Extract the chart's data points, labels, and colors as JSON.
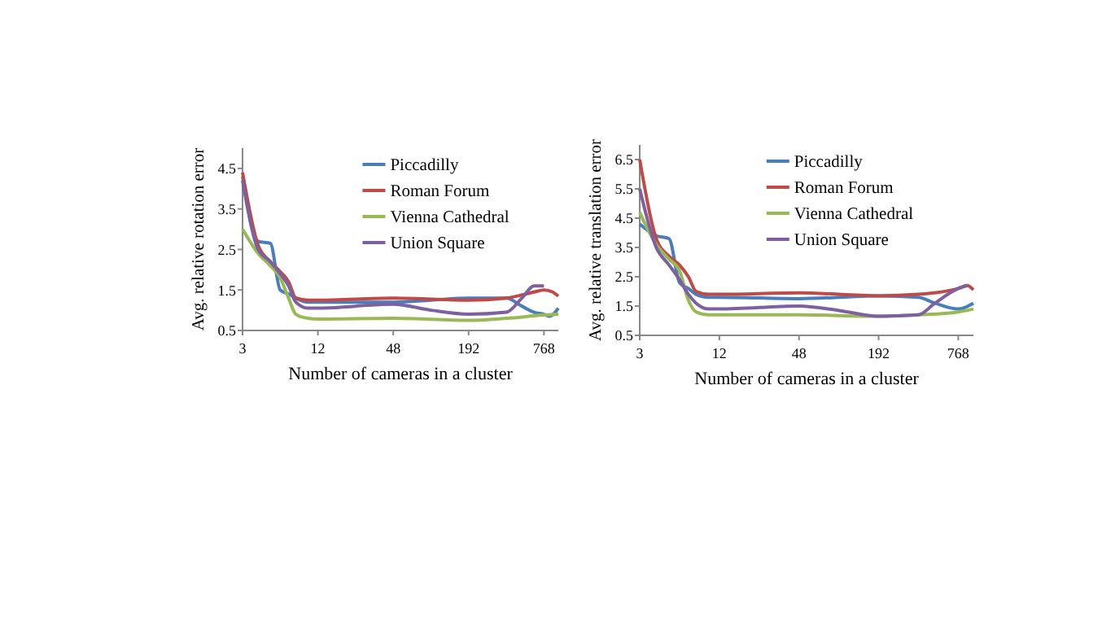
{
  "chart_data": [
    {
      "type": "line",
      "xlabel": "Number of cameras in a cluster",
      "ylabel": "Avg. relative rotation error",
      "log": "x",
      "xlim": [
        3,
        1000
      ],
      "xticks": [
        3,
        12,
        48,
        192,
        768
      ],
      "ylim": [
        0.5,
        5
      ],
      "yticks": [
        0.5,
        1.5,
        2.5,
        3.5,
        4.5
      ],
      "grid": false,
      "legend": "top right",
      "marker": "none",
      "line_style": "solid",
      "series": [
        {
          "name": "Piccadilly",
          "color": "#4a7ebb",
          "x": [
            3,
            4,
            5,
            6,
            7,
            8,
            10,
            12,
            24,
            48,
            96,
            192,
            384,
            512,
            640,
            768,
            850,
            1000
          ],
          "values": [
            4.3,
            2.7,
            2.65,
            1.5,
            1.4,
            1.3,
            1.2,
            1.2,
            1.2,
            1.2,
            1.25,
            1.3,
            1.3,
            1.1,
            0.95,
            0.9,
            0.85,
            1.05
          ]
        },
        {
          "name": "Roman Forum",
          "color": "#be4b48",
          "x": [
            3,
            4,
            5,
            6,
            7,
            8,
            10,
            12,
            48,
            192,
            384,
            640,
            768,
            900,
            1000
          ],
          "values": [
            4.4,
            2.6,
            2.2,
            1.95,
            1.7,
            1.3,
            1.25,
            1.25,
            1.3,
            1.25,
            1.3,
            1.45,
            1.5,
            1.45,
            1.35
          ]
        },
        {
          "name": "Vienna Cathedral",
          "color": "#98b954",
          "x": [
            3,
            4,
            5,
            6,
            7,
            8,
            10,
            12,
            48,
            192,
            384,
            768,
            1000
          ],
          "values": [
            3.0,
            2.4,
            2.1,
            1.8,
            1.3,
            0.9,
            0.8,
            0.78,
            0.8,
            0.75,
            0.8,
            0.88,
            0.9
          ]
        },
        {
          "name": "Union Square",
          "color": "#7d60a0",
          "x": [
            3,
            4,
            5,
            6,
            7,
            8,
            10,
            12,
            24,
            48,
            96,
            192,
            384,
            512,
            640,
            768
          ],
          "values": [
            4.2,
            2.5,
            2.2,
            1.9,
            1.6,
            1.2,
            1.05,
            1.05,
            1.1,
            1.15,
            1.0,
            0.9,
            0.95,
            1.3,
            1.6,
            1.6
          ]
        }
      ]
    },
    {
      "type": "line",
      "xlabel": "Number of cameras in a cluster",
      "ylabel": "Avg. relative translation error",
      "log": "x",
      "xlim": [
        3,
        1000
      ],
      "xticks": [
        3,
        12,
        48,
        192,
        768
      ],
      "ylim": [
        0.5,
        7
      ],
      "yticks": [
        0.5,
        1.5,
        2.5,
        3.5,
        4.5,
        5.5,
        6.5
      ],
      "grid": false,
      "legend": "top right",
      "marker": "none",
      "line_style": "solid",
      "series": [
        {
          "name": "Piccadilly",
          "color": "#4a7ebb",
          "x": [
            3,
            4,
            5,
            6,
            7,
            8,
            10,
            12,
            48,
            192,
            384,
            512,
            768,
            1000
          ],
          "values": [
            4.3,
            3.9,
            3.8,
            2.3,
            2.1,
            1.9,
            1.8,
            1.8,
            1.75,
            1.85,
            1.8,
            1.6,
            1.4,
            1.6
          ]
        },
        {
          "name": "Roman Forum",
          "color": "#be4b48",
          "x": [
            3,
            4,
            5,
            6,
            7,
            8,
            10,
            12,
            48,
            192,
            384,
            768,
            900,
            1000
          ],
          "values": [
            6.5,
            3.8,
            3.2,
            2.9,
            2.5,
            2.0,
            1.9,
            1.9,
            1.95,
            1.85,
            1.9,
            2.1,
            2.2,
            2.05
          ]
        },
        {
          "name": "Vienna Cathedral",
          "color": "#98b954",
          "x": [
            3,
            4,
            5,
            6,
            7,
            8,
            10,
            12,
            48,
            192,
            384,
            768,
            1000
          ],
          "values": [
            4.7,
            3.6,
            3.1,
            2.7,
            1.7,
            1.3,
            1.2,
            1.2,
            1.2,
            1.15,
            1.2,
            1.3,
            1.4
          ]
        },
        {
          "name": "Union Square",
          "color": "#7d60a0",
          "x": [
            3,
            4,
            5,
            6,
            7,
            8,
            10,
            12,
            48,
            96,
            192,
            384,
            512,
            768,
            900
          ],
          "values": [
            5.5,
            3.5,
            2.9,
            2.4,
            1.9,
            1.6,
            1.4,
            1.4,
            1.5,
            1.35,
            1.15,
            1.2,
            1.6,
            2.1,
            2.2
          ]
        }
      ]
    }
  ]
}
